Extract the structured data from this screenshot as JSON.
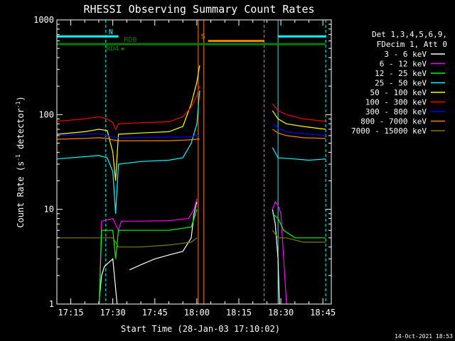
{
  "chart_data": {
    "type": "line",
    "title": "RHESSI Observing Summary Count Rates",
    "xlabel": "Start Time (28-Jan-03 17:10:02)",
    "ylabel_main": "Count Rate (s",
    "ylabel_sup1": "-1",
    "ylabel_mid": " detector",
    "ylabel_sup2": "-1",
    "ylabel_end": ")",
    "footer": "14-Oct-2021 18:53",
    "yscale": "log",
    "ylim": [
      1,
      1000
    ],
    "xlim": [
      "17:10:02",
      "18:48:00"
    ],
    "y_ticks": [
      {
        "value": 1,
        "label": "1"
      },
      {
        "value": 10,
        "label": "10"
      },
      {
        "value": 100,
        "label": "100"
      },
      {
        "value": 1000,
        "label": "1000"
      }
    ],
    "x_ticks": [
      {
        "value": "17:15",
        "label": "17:15"
      },
      {
        "value": "17:30",
        "label": "17:30"
      },
      {
        "value": "17:45",
        "label": "17:45"
      },
      {
        "value": "18:00",
        "label": "18:00"
      },
      {
        "value": "18:15",
        "label": "18:15"
      },
      {
        "value": "18:30",
        "label": "18:30"
      },
      {
        "value": "18:45",
        "label": "18:45"
      }
    ],
    "legend_header": [
      "Det 1,3,4,5,6,9,",
      "FDecim 1, Att 0"
    ],
    "legend_position": "right",
    "series": [
      {
        "name": "3 - 6 keV",
        "color": "#ffffff",
        "segments": [
          [
            [
              "17:10",
              "0.5"
            ],
            [
              "17:24",
              "0.5"
            ],
            [
              "17:25",
              1
            ],
            [
              "17:26",
              2
            ],
            [
              "17:27",
              2.5
            ],
            [
              "17:30",
              3
            ],
            [
              "17:32",
              0.5
            ]
          ],
          [
            [
              "17:36",
              2.3
            ],
            [
              "17:40",
              2.6
            ],
            [
              "17:45",
              3
            ],
            [
              "17:50",
              3.3
            ],
            [
              "17:55",
              3.6
            ],
            [
              "17:58",
              5
            ],
            [
              "17:59",
              9
            ],
            [
              "18:00",
              12
            ]
          ],
          [
            [
              "18:27",
              10
            ],
            [
              "18:28",
              7
            ],
            [
              "18:29",
              3
            ],
            [
              "18:29.5",
              1
            ]
          ]
        ]
      },
      {
        "name": "6 - 12 keV",
        "color": "#ff00ff",
        "segments": [
          [
            [
              "17:10",
              "0.5"
            ],
            [
              "17:25",
              "0.5"
            ],
            [
              "17:26",
              7.5
            ],
            [
              "17:30",
              8
            ],
            [
              "17:32",
              6
            ],
            [
              "17:33",
              7.5
            ],
            [
              "17:40",
              7.5
            ],
            [
              "17:50",
              7.6
            ],
            [
              "17:57",
              8
            ],
            [
              "17:59",
              10
            ],
            [
              "18:00",
              13
            ]
          ],
          [
            [
              "18:27",
              10
            ],
            [
              "18:28",
              12
            ],
            [
              "18:29",
              11
            ],
            [
              "18:30",
              9
            ],
            [
              "18:32",
              1
            ],
            [
              "18:33",
              "0.5"
            ]
          ]
        ]
      },
      {
        "name": "12 - 25 keV",
        "color": "#00ff00",
        "segments": [
          [
            [
              "17:10",
              "0.5"
            ],
            [
              "17:25",
              "0.5"
            ],
            [
              "17:26",
              6
            ],
            [
              "17:30",
              6
            ],
            [
              "17:31",
              3
            ],
            [
              "17:32",
              6
            ],
            [
              "17:40",
              6
            ],
            [
              "17:50",
              6
            ],
            [
              "17:58",
              6.5
            ],
            [
              "18:00",
              10
            ]
          ],
          [
            [
              "18:27",
              9
            ],
            [
              "18:29",
              8
            ],
            [
              "18:31",
              6
            ],
            [
              "18:35",
              5
            ],
            [
              "18:40",
              5
            ],
            [
              "18:46",
              5
            ]
          ]
        ]
      },
      {
        "name": "25 - 50 keV",
        "color": "#00ffff",
        "segments": [
          [
            [
              "17:10",
              34
            ],
            [
              "17:20",
              36
            ],
            [
              "17:25",
              37
            ],
            [
              "17:28",
              35
            ],
            [
              "17:30",
              25
            ],
            [
              "17:31",
              9
            ],
            [
              "17:32",
              30
            ],
            [
              "17:40",
              32
            ],
            [
              "17:50",
              33
            ],
            [
              "17:55",
              35
            ],
            [
              "17:58",
              50
            ],
            [
              "18:00",
              80
            ],
            [
              "18:01",
              180
            ]
          ],
          [
            [
              "18:27",
              45
            ],
            [
              "18:29",
              35
            ],
            [
              "18:35",
              34
            ],
            [
              "18:40",
              33
            ],
            [
              "18:46",
              34
            ]
          ]
        ]
      },
      {
        "name": "50 - 100 keV",
        "color": "#ffff00",
        "segments": [
          [
            [
              "17:10",
              62
            ],
            [
              "17:20",
              66
            ],
            [
              "17:25",
              70
            ],
            [
              "17:28",
              68
            ],
            [
              "17:30",
              40
            ],
            [
              "17:31",
              20
            ],
            [
              "17:32",
              62
            ],
            [
              "17:40",
              64
            ],
            [
              "17:50",
              66
            ],
            [
              "17:55",
              75
            ],
            [
              "17:58",
              130
            ],
            [
              "18:00",
              220
            ],
            [
              "18:01",
              330
            ]
          ],
          [
            [
              "18:27",
              110
            ],
            [
              "18:29",
              90
            ],
            [
              "18:32",
              80
            ],
            [
              "18:38",
              75
            ],
            [
              "18:46",
              70
            ]
          ]
        ]
      },
      {
        "name": "100 - 300 keV",
        "color": "#ff0000",
        "segments": [
          [
            [
              "17:10",
              85
            ],
            [
              "17:20",
              90
            ],
            [
              "17:25",
              95
            ],
            [
              "17:28",
              90
            ],
            [
              "17:30",
              82
            ],
            [
              "17:31",
              70
            ],
            [
              "17:32",
              80
            ],
            [
              "17:40",
              82
            ],
            [
              "17:50",
              84
            ],
            [
              "17:55",
              95
            ],
            [
              "17:58",
              120
            ],
            [
              "18:00",
              160
            ],
            [
              "18:01",
              200
            ]
          ],
          [
            [
              "18:27",
              130
            ],
            [
              "18:29",
              110
            ],
            [
              "18:32",
              100
            ],
            [
              "18:38",
              90
            ],
            [
              "18:46",
              85
            ]
          ]
        ]
      },
      {
        "name": "300 - 800 keV",
        "color": "#0000ff",
        "segments": [
          [
            [
              "17:10",
              60
            ],
            [
              "17:20",
              62
            ],
            [
              "17:25",
              63
            ],
            [
              "17:28",
              60
            ],
            [
              "17:30",
              58
            ],
            [
              "17:32",
              57
            ],
            [
              "17:40",
              57
            ],
            [
              "17:50",
              58
            ],
            [
              "17:57",
              58
            ],
            [
              "18:00",
              60
            ],
            [
              "18:01",
              60
            ]
          ],
          [
            [
              "18:27",
              80
            ],
            [
              "18:29",
              72
            ],
            [
              "18:32",
              66
            ],
            [
              "18:38",
              63
            ],
            [
              "18:46",
              60
            ]
          ]
        ]
      },
      {
        "name": "800 - 7000 keV",
        "color": "#ff8000",
        "segments": [
          [
            [
              "17:10",
              55
            ],
            [
              "17:20",
              56
            ],
            [
              "17:25",
              57
            ],
            [
              "17:28",
              56
            ],
            [
              "17:30",
              54
            ],
            [
              "17:32",
              53
            ],
            [
              "17:40",
              53
            ],
            [
              "17:50",
              53
            ],
            [
              "17:57",
              54
            ],
            [
              "18:00",
              55
            ],
            [
              "18:01",
              55
            ]
          ],
          [
            [
              "18:27",
              70
            ],
            [
              "18:29",
              64
            ],
            [
              "18:32",
              60
            ],
            [
              "18:38",
              57
            ],
            [
              "18:46",
              56
            ]
          ]
        ]
      },
      {
        "name": "7000 - 15000 keV",
        "color": "#808000",
        "segments": [
          [
            [
              "17:10",
              5
            ],
            [
              "17:20",
              5
            ],
            [
              "17:26",
              5
            ],
            [
              "17:30",
              5
            ],
            [
              "17:32",
              4
            ],
            [
              "17:40",
              4
            ],
            [
              "17:50",
              4.2
            ],
            [
              "17:58",
              4.5
            ],
            [
              "18:00",
              5
            ]
          ],
          [
            [
              "18:27",
              6
            ],
            [
              "18:29",
              5
            ],
            [
              "18:32",
              5
            ],
            [
              "18:38",
              4.5
            ],
            [
              "18:46",
              4.5
            ]
          ]
        ]
      }
    ],
    "annotations": [
      {
        "label": "N",
        "color": "#00ffff",
        "bars": [
          [
            "17:10",
            "17:32"
          ],
          [
            "18:29",
            "18:46"
          ]
        ],
        "y": 670
      },
      {
        "label": "S",
        "color": "#ff8000",
        "bars": [
          [
            "18:04",
            "18:24"
          ]
        ],
        "y": 600
      },
      {
        "label": "RD0",
        "color": "#008000",
        "bars": [
          [
            "17:10",
            "18:46"
          ]
        ],
        "y": 555
      },
      {
        "label": "RD4",
        "color": "#008000",
        "bars": [
          [
            "17:33",
            "17:34"
          ]
        ],
        "y": 495
      }
    ],
    "vlines": [
      {
        "x": "17:10:02",
        "color": "#00ffff",
        "style": "solid"
      },
      {
        "x": "17:27:30",
        "color": "#00ffff",
        "style": "dashed"
      },
      {
        "x": "18:00:30",
        "color": "#ff8000",
        "style": "solid"
      },
      {
        "x": "18:02:30",
        "color": "#ff8000",
        "style": "solid"
      },
      {
        "x": "18:24:00",
        "color": "#ff8000",
        "style": "dashed"
      },
      {
        "x": "18:29:00",
        "color": "#00ffff",
        "style": "solid"
      },
      {
        "x": "18:46:00",
        "color": "#00ffff",
        "style": "dashed"
      }
    ]
  }
}
